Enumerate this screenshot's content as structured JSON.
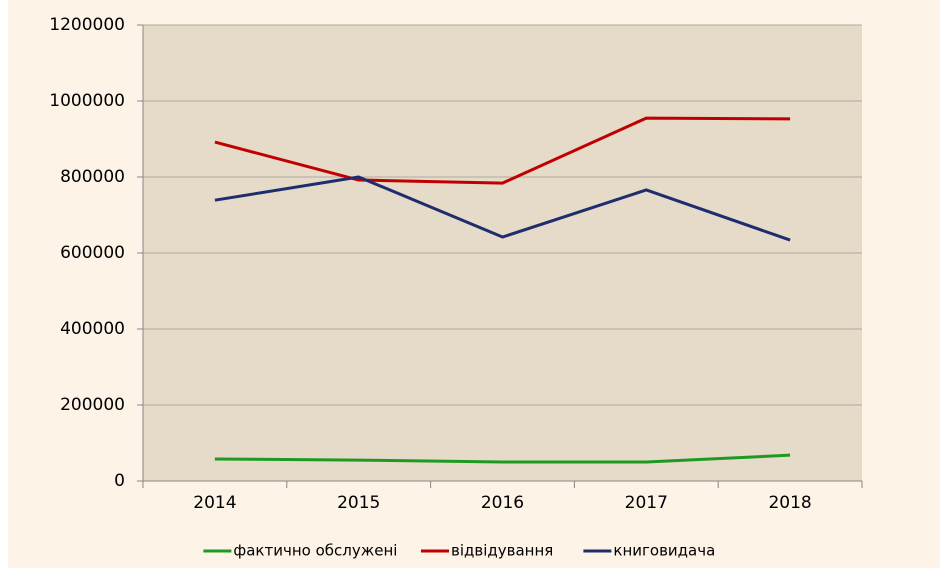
{
  "chart_data": {
    "type": "line",
    "categories": [
      "2014",
      "2015",
      "2016",
      "2017",
      "2018"
    ],
    "series": [
      {
        "name": "фактично обслужені",
        "color": "#1e9a22",
        "values": [
          58000,
          55000,
          50000,
          50000,
          68000
        ]
      },
      {
        "name": "відвідування",
        "color": "#c00000",
        "values": [
          892000,
          792000,
          784000,
          955000,
          953000
        ]
      },
      {
        "name": "книговидача",
        "color": "#1f2d6e",
        "values": [
          739000,
          800000,
          642000,
          766000,
          634000
        ]
      }
    ],
    "ylim": [
      0,
      1200000
    ],
    "yticks": [
      0,
      200000,
      400000,
      600000,
      800000,
      1000000,
      1200000
    ],
    "grid": true,
    "legend": "bottom"
  }
}
